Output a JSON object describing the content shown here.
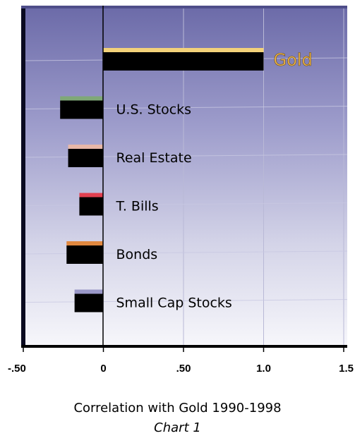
{
  "chart_data": {
    "type": "bar",
    "orientation": "horizontal",
    "categories": [
      "Gold",
      "U.S. Stocks",
      "Real Estate",
      "T. Bills",
      "Bonds",
      "Small Cap Stocks"
    ],
    "values": [
      1.0,
      -0.27,
      -0.22,
      -0.15,
      -0.23,
      -0.18
    ],
    "highlight_colors": [
      "#f3d27a",
      "#7fa877",
      "#e8b8a8",
      "#e24050",
      "#e08840",
      "#9a98c8"
    ],
    "xlim": [
      -0.5,
      1.5
    ],
    "xticks": [
      -0.5,
      0,
      0.5,
      1.0,
      1.5
    ],
    "xtick_labels": [
      "-.50",
      "0",
      ".50",
      "1.0",
      "1.5"
    ],
    "xlabel": "Correlation with Gold 1990-1998",
    "caption": "Chart 1",
    "grid": true
  }
}
